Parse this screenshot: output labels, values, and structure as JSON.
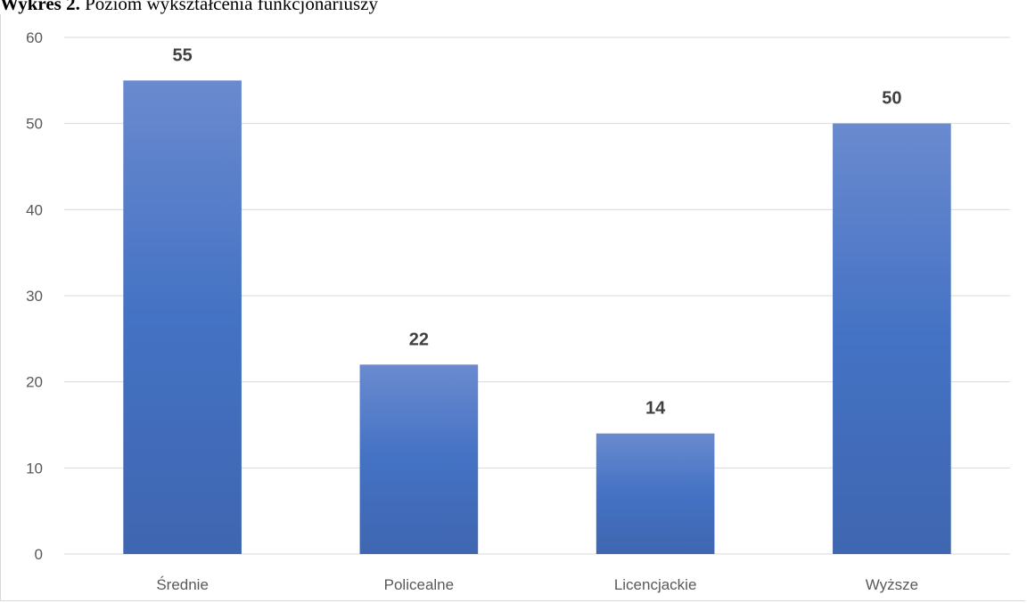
{
  "figure": {
    "caption_bold": "Wykres 2.",
    "caption_rest": " Poziom wykształcenia funkcjonariuszy"
  },
  "colors": {
    "bar_top": "#6a8acf",
    "bar_mid": "#4472c4",
    "bar_bottom": "#3f66b0",
    "grid": "#d9d9d9",
    "axis_text": "#595959",
    "label_text": "#404040"
  },
  "chart_data": {
    "type": "bar",
    "categories": [
      "Średnie",
      "Policealne",
      "Licencjackie",
      "Wyższe"
    ],
    "values": [
      55,
      22,
      14,
      50
    ],
    "data_labels": [
      "55",
      "22",
      "14",
      "50"
    ],
    "y_ticks": [
      "0",
      "10",
      "20",
      "30",
      "40",
      "50",
      "60"
    ],
    "ylim": [
      0,
      60
    ],
    "title": "",
    "xlabel": "",
    "ylabel": "",
    "grid": true,
    "legend": "none"
  }
}
